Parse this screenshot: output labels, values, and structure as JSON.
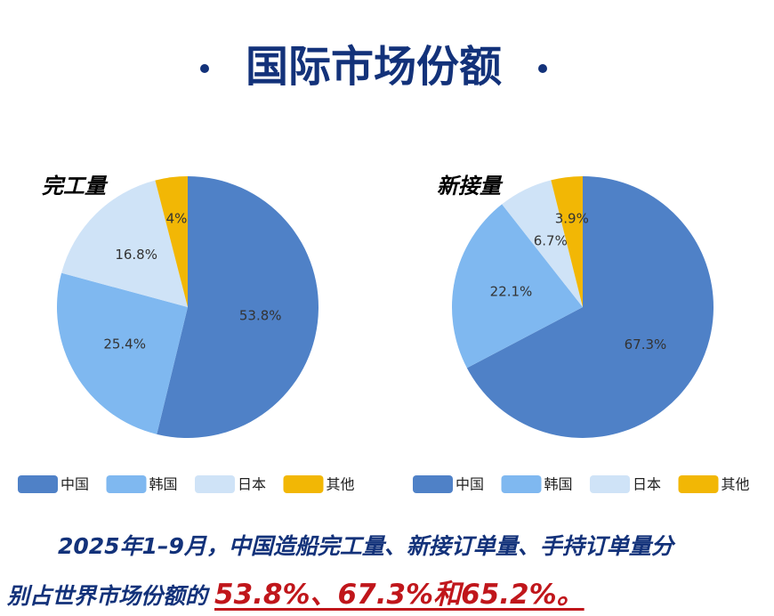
{
  "header": {
    "title": "国际市场份额"
  },
  "chart_data": [
    {
      "type": "pie",
      "title": "完工量",
      "categories": [
        "中国",
        "韩国",
        "日本",
        "其他"
      ],
      "values": [
        53.8,
        25.4,
        16.8,
        4
      ],
      "value_labels": [
        "53.8%",
        "25.4%",
        "16.8%",
        "4%"
      ],
      "colors": [
        "#4f81c7",
        "#7fb8f0",
        "#cfe3f7",
        "#f2b705"
      ]
    },
    {
      "type": "pie",
      "title": "新接量",
      "categories": [
        "中国",
        "韩国",
        "日本",
        "其他"
      ],
      "values": [
        67.3,
        22.1,
        6.7,
        3.9
      ],
      "value_labels": [
        "67.3%",
        "22.1%",
        "6.7%",
        "3.9%"
      ],
      "colors": [
        "#4f81c7",
        "#7fb8f0",
        "#cfe3f7",
        "#f2b705"
      ]
    }
  ],
  "footer": {
    "lines": [
      "2025年1–9月，中国造船完工量、新接订单量、手持订单量分",
      "别占世界市场份额的"
    ],
    "highlight": "53.8%、67.3%和65.2%。"
  }
}
